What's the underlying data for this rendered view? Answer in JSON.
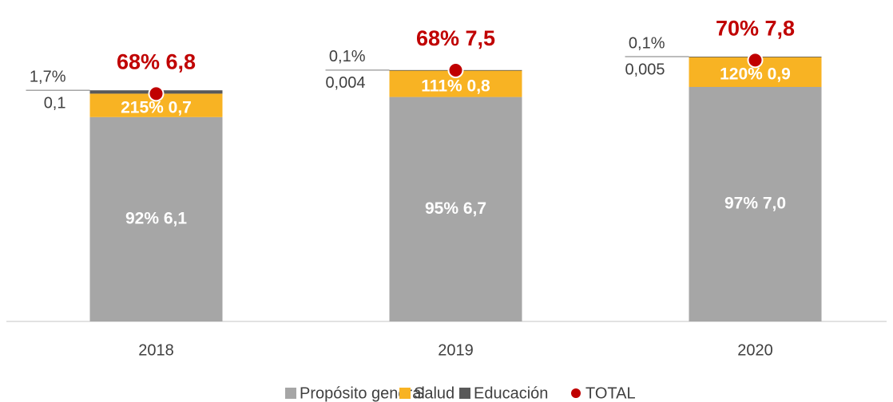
{
  "chart_data": {
    "type": "bar",
    "stacked": true,
    "categories": [
      "2018",
      "2019",
      "2020"
    ],
    "ylim": [
      0,
      9
    ],
    "series": [
      {
        "name": "Propósito general",
        "color": "#a6a6a6",
        "values": [
          6.1,
          6.7,
          7.0
        ],
        "value_labels": [
          "92% 6,1",
          "95% 6,7",
          "97% 7,0"
        ]
      },
      {
        "name": "Salud",
        "color": "#f8b323",
        "values": [
          0.7,
          0.8,
          0.9
        ],
        "value_labels": [
          "215% 0,7",
          "111% 0,8",
          "120% 0,9"
        ]
      },
      {
        "name": "Educación",
        "color": "#595959",
        "values": [
          0.1,
          0.004,
          0.005
        ],
        "value_labels": [
          [
            "1,7%",
            "0,1"
          ],
          [
            "0,1%",
            "0,004"
          ],
          [
            "0,1%",
            "0,005"
          ]
        ]
      },
      {
        "name": "TOTAL",
        "color": "#c00000",
        "kind": "dot",
        "values": [
          6.8,
          7.5,
          7.8
        ],
        "value_labels": [
          "68% 6,8",
          "68% 7,5",
          "70% 7,8"
        ]
      }
    ]
  }
}
